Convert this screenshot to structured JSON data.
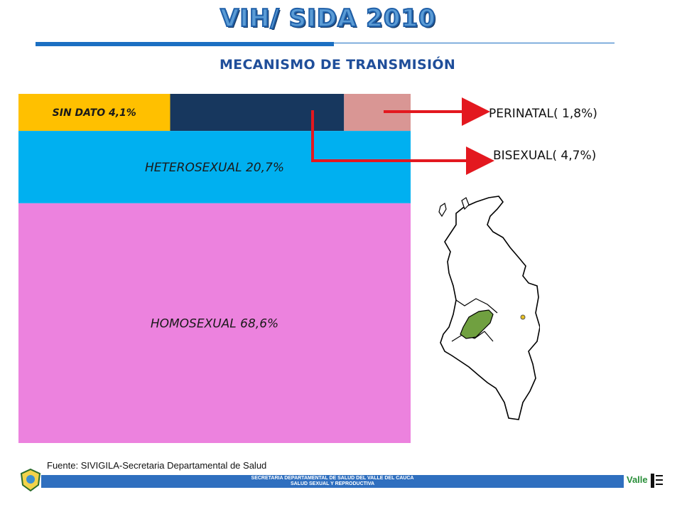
{
  "header": {
    "title": "VIH/ SIDA  2010",
    "subtitle": "MECANISMO DE TRANSMISIÓN"
  },
  "chart_data": {
    "type": "treemap",
    "title": "MECANISMO DE TRANSMISIÓN",
    "series": [
      {
        "name": "HOMOSEXUAL",
        "value": 68.6,
        "label": "HOMOSEXUAL 68,6%",
        "color": "#ec82de"
      },
      {
        "name": "HETEROSEXUAL",
        "value": 20.7,
        "label": "HETEROSEXUAL 20,7%",
        "color": "#00b0f0"
      },
      {
        "name": "SIN DATO",
        "value": 4.1,
        "label": "SIN DATO 4,1%",
        "color": "#ffc000"
      },
      {
        "name": "BISEXUAL",
        "value": 4.7,
        "label": "",
        "color": "#17375e"
      },
      {
        "name": "PERINATAL",
        "value": 1.8,
        "label": "",
        "color": "#d99694"
      }
    ],
    "callouts": [
      {
        "name": "PERINATAL",
        "text": "PERINATAL( 1,8%)"
      },
      {
        "name": "BISEXUAL",
        "text": "BISEXUAL( 4,7%)"
      }
    ]
  },
  "colors": {
    "arrow": "#e3181f",
    "map_highlight": "#70a040",
    "footer": "#2f6fbf",
    "title": "#5a9bd5"
  },
  "source": "Fuente: SIVIGILA-Secretaria Departamental de Salud",
  "footer": {
    "line1": "SECRETARIA DEPARTAMENTAL DE SALUD DEL VALLE DEL CAUCA",
    "line2": "SALUD SEXUAL Y REPRODUCTIVA"
  },
  "logos": {
    "left": "departmental-seal",
    "right_text": "Valle"
  }
}
